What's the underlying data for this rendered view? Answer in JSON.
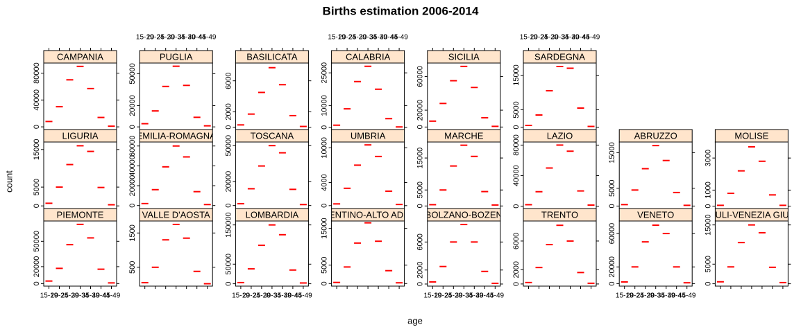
{
  "title": "Births estimation 2006-2014",
  "x_label": "age",
  "y_label": "count",
  "categories": [
    "15-19",
    "20-24",
    "25-29",
    "30-34",
    "35-39",
    "40-44",
    "45-49"
  ],
  "chart_data": [
    {
      "type": "dot",
      "strip": "CAMPANIA",
      "color": "#ff0000",
      "values": [
        8000,
        30000,
        70000,
        90000,
        57000,
        14000,
        1000
      ],
      "ylim": [
        -4000,
        95000
      ],
      "yticks": [
        0,
        40000,
        80000
      ]
    },
    {
      "type": "dot",
      "strip": "PUGLIA",
      "color": "#ff0000",
      "values": [
        3000,
        15000,
        38000,
        57000,
        39000,
        9000,
        1000
      ],
      "ylim": [
        -2500,
        60000
      ],
      "yticks": [
        0,
        20000,
        50000
      ]
    },
    {
      "type": "dot",
      "strip": "BASILICATA",
      "color": "#ff0000",
      "values": [
        300,
        1700,
        4500,
        7700,
        5500,
        1500,
        100
      ],
      "ylim": [
        -300,
        8300
      ],
      "yticks": [
        0,
        2000,
        6000
      ]
    },
    {
      "type": "dot",
      "strip": "CALABRIA",
      "color": "#ff0000",
      "values": [
        1000,
        8500,
        21000,
        28000,
        17500,
        4000,
        200
      ],
      "ylim": [
        -1000,
        29500
      ],
      "yticks": [
        0,
        10000,
        25000
      ]
    },
    {
      "type": "dot",
      "strip": "SICILIA",
      "color": "#ff0000",
      "values": [
        7000,
        28000,
        55000,
        72000,
        47000,
        11000,
        800
      ],
      "ylim": [
        -3000,
        76000
      ],
      "yticks": [
        0,
        20000,
        60000
      ]
    },
    {
      "type": "dot",
      "strip": "SARDEGNA",
      "color": "#ff0000",
      "values": [
        500,
        3500,
        10500,
        17500,
        17000,
        5500,
        200
      ],
      "ylim": [
        -700,
        18500
      ],
      "yticks": [
        0,
        5000,
        15000
      ]
    },
    {
      "type": "dot",
      "strip": "LIGURIA",
      "color": "#ff0000",
      "values": [
        700,
        5000,
        11000,
        16000,
        14500,
        4900,
        300
      ],
      "ylim": [
        -700,
        17000
      ],
      "yticks": [
        0,
        5000,
        15000
      ]
    },
    {
      "type": "dot",
      "strip": "EMILIA-ROMAGNA",
      "color": "#ff0000",
      "values": [
        2000,
        16000,
        39000,
        60000,
        49000,
        14000,
        1000
      ],
      "ylim": [
        -3000,
        64000
      ],
      "yticks": [
        0,
        20000,
        40000,
        60000
      ]
    },
    {
      "type": "dot",
      "strip": "TOSCANA",
      "color": "#ff0000",
      "values": [
        1500,
        14000,
        33000,
        50000,
        44000,
        13500,
        800
      ],
      "ylim": [
        -2500,
        53000
      ],
      "yticks": [
        0,
        20000,
        50000
      ]
    },
    {
      "type": "dot",
      "strip": "UMBRIA",
      "color": "#ff0000",
      "values": [
        300,
        3000,
        7000,
        10500,
        8500,
        2500,
        200
      ],
      "ylim": [
        -500,
        11000
      ],
      "yticks": [
        0,
        4000,
        10000
      ]
    },
    {
      "type": "dot",
      "strip": "MARCHE",
      "color": "#ff0000",
      "values": [
        400,
        5000,
        12500,
        19000,
        15500,
        4500,
        300
      ],
      "ylim": [
        -800,
        20000
      ],
      "yticks": [
        0,
        5000,
        15000
      ]
    },
    {
      "type": "dot",
      "strip": "LAZIO",
      "color": "#ff0000",
      "values": [
        2000,
        19000,
        50000,
        80000,
        72000,
        20000,
        1500
      ],
      "ylim": [
        -3000,
        84000
      ],
      "yticks": [
        0,
        40000,
        80000
      ]
    },
    {
      "type": "dot",
      "strip": "ABRUZZO",
      "color": "#ff0000",
      "values": [
        400,
        4500,
        10500,
        17000,
        12800,
        3800,
        200
      ],
      "ylim": [
        -700,
        18000
      ],
      "yticks": [
        0,
        5000,
        15000
      ]
    },
    {
      "type": "dot",
      "strip": "MOLISE",
      "color": "#ff0000",
      "values": [
        50,
        800,
        2200,
        3700,
        2800,
        700,
        50
      ],
      "ylim": [
        -150,
        4000
      ],
      "yticks": [
        0,
        1000,
        3000
      ]
    },
    {
      "type": "dot",
      "strip": "PIEMONTE",
      "color": "#ff0000",
      "values": [
        3000,
        18000,
        46000,
        70000,
        54000,
        17000,
        800
      ],
      "ylim": [
        -3000,
        74000
      ],
      "yticks": [
        0,
        20000,
        50000
      ]
    },
    {
      "type": "dot",
      "strip": "VALLE D'AOSTA",
      "color": "#ff0000",
      "values": [
        50,
        500,
        1300,
        1750,
        1350,
        380,
        20
      ],
      "ylim": [
        -50,
        1850
      ],
      "yticks": [
        500,
        1500
      ]
    },
    {
      "type": "dot",
      "strip": "LOMBARDIA",
      "color": "#ff0000",
      "values": [
        3000,
        38000,
        98000,
        150000,
        125000,
        35000,
        2000
      ],
      "ylim": [
        -6000,
        160000
      ],
      "yticks": [
        0,
        50000,
        150000
      ]
    },
    {
      "type": "dot",
      "strip": "TRENTINO-ALTO ADIGE",
      "color": "#ff0000",
      "values": [
        300,
        4500,
        11000,
        16500,
        11500,
        3500,
        200
      ],
      "ylim": [
        -700,
        17000
      ],
      "yticks": [
        0,
        5000,
        15000
      ]
    },
    {
      "type": "dot",
      "strip": "BOLZANO-BOZEN",
      "color": "#ff0000",
      "values": [
        300,
        2500,
        6000,
        8500,
        6000,
        1800,
        100
      ],
      "ylim": [
        -300,
        9000
      ],
      "yticks": [
        0,
        2000,
        6000
      ]
    },
    {
      "type": "dot",
      "strip": "TRENTO",
      "color": "#ff0000",
      "values": [
        200,
        2300,
        5500,
        8200,
        6000,
        1600,
        100
      ],
      "ylim": [
        -300,
        8800
      ],
      "yticks": [
        0,
        2000,
        6000
      ]
    },
    {
      "type": "dot",
      "strip": "VENETO",
      "color": "#ff0000",
      "values": [
        2000,
        20000,
        50000,
        70000,
        60000,
        20000,
        1000
      ],
      "ylim": [
        -3000,
        75000
      ],
      "yticks": [
        0,
        20000,
        60000
      ]
    },
    {
      "type": "dot",
      "strip": "FRIULI-VENEZIA GIULIA",
      "color": "#ff0000",
      "values": [
        500,
        4300,
        10500,
        15000,
        13000,
        4200,
        300
      ],
      "ylim": [
        -600,
        16000
      ],
      "yticks": [
        0,
        5000,
        15000
      ]
    }
  ]
}
